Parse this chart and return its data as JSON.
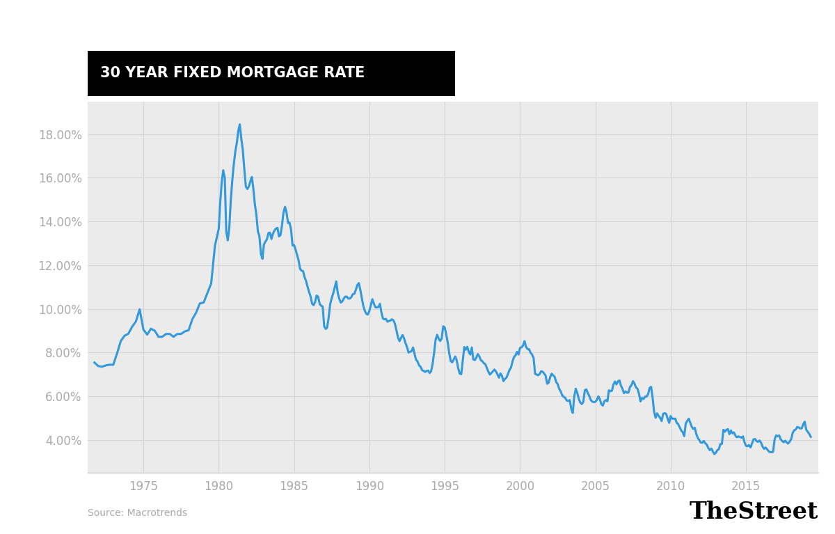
{
  "title": "30 YEAR FIXED MORTGAGE RATE",
  "title_bg": "#000000",
  "title_color": "#ffffff",
  "source_text": "Source: Macrotrends",
  "brand_text": "TheStreet",
  "line_color": "#3399dd",
  "fig_bg": "#ffffff",
  "plot_bg": "#ebebeb",
  "tick_color": "#aaaaaa",
  "grid_color": "#d5d5d5",
  "ylim": [
    2.5,
    19.5
  ],
  "xlim": [
    1971.3,
    2019.8
  ],
  "yticks": [
    4.0,
    6.0,
    8.0,
    10.0,
    12.0,
    14.0,
    16.0,
    18.0
  ],
  "xtick_spacing": 5,
  "data": [
    [
      1971.75,
      7.54
    ],
    [
      1972.0,
      7.38
    ],
    [
      1972.25,
      7.35
    ],
    [
      1972.5,
      7.41
    ],
    [
      1972.75,
      7.44
    ],
    [
      1973.0,
      7.44
    ],
    [
      1973.25,
      7.96
    ],
    [
      1973.5,
      8.53
    ],
    [
      1973.75,
      8.77
    ],
    [
      1974.0,
      8.86
    ],
    [
      1974.25,
      9.18
    ],
    [
      1974.5,
      9.42
    ],
    [
      1974.75,
      9.98
    ],
    [
      1975.0,
      9.05
    ],
    [
      1975.25,
      8.82
    ],
    [
      1975.5,
      9.09
    ],
    [
      1975.75,
      9.0
    ],
    [
      1976.0,
      8.72
    ],
    [
      1976.25,
      8.72
    ],
    [
      1976.5,
      8.85
    ],
    [
      1976.75,
      8.85
    ],
    [
      1977.0,
      8.72
    ],
    [
      1977.25,
      8.85
    ],
    [
      1977.5,
      8.85
    ],
    [
      1977.75,
      8.97
    ],
    [
      1978.0,
      9.02
    ],
    [
      1978.25,
      9.53
    ],
    [
      1978.5,
      9.83
    ],
    [
      1978.75,
      10.25
    ],
    [
      1979.0,
      10.29
    ],
    [
      1979.25,
      10.73
    ],
    [
      1979.5,
      11.17
    ],
    [
      1979.75,
      12.9
    ],
    [
      1980.0,
      13.67
    ],
    [
      1980.1,
      14.88
    ],
    [
      1980.2,
      15.82
    ],
    [
      1980.3,
      16.35
    ],
    [
      1980.4,
      16.0
    ],
    [
      1980.5,
      13.55
    ],
    [
      1980.6,
      13.14
    ],
    [
      1980.7,
      13.7
    ],
    [
      1980.8,
      14.97
    ],
    [
      1980.9,
      15.89
    ],
    [
      1981.0,
      16.63
    ],
    [
      1981.1,
      17.2
    ],
    [
      1981.2,
      17.6
    ],
    [
      1981.3,
      18.16
    ],
    [
      1981.4,
      18.45
    ],
    [
      1981.5,
      17.78
    ],
    [
      1981.6,
      17.27
    ],
    [
      1981.7,
      16.38
    ],
    [
      1981.8,
      15.6
    ],
    [
      1981.9,
      15.49
    ],
    [
      1982.0,
      15.6
    ],
    [
      1982.1,
      15.85
    ],
    [
      1982.2,
      16.04
    ],
    [
      1982.3,
      15.49
    ],
    [
      1982.4,
      14.78
    ],
    [
      1982.5,
      14.31
    ],
    [
      1982.6,
      13.54
    ],
    [
      1982.7,
      13.33
    ],
    [
      1982.8,
      12.53
    ],
    [
      1982.9,
      12.29
    ],
    [
      1983.0,
      12.95
    ],
    [
      1983.1,
      13.08
    ],
    [
      1983.2,
      13.19
    ],
    [
      1983.3,
      13.47
    ],
    [
      1983.4,
      13.49
    ],
    [
      1983.5,
      13.2
    ],
    [
      1983.6,
      13.45
    ],
    [
      1983.7,
      13.59
    ],
    [
      1983.8,
      13.68
    ],
    [
      1983.9,
      13.71
    ],
    [
      1984.0,
      13.32
    ],
    [
      1984.1,
      13.38
    ],
    [
      1984.2,
      13.83
    ],
    [
      1984.3,
      14.42
    ],
    [
      1984.4,
      14.67
    ],
    [
      1984.5,
      14.42
    ],
    [
      1984.6,
      13.93
    ],
    [
      1984.7,
      13.95
    ],
    [
      1984.8,
      13.63
    ],
    [
      1984.9,
      12.9
    ],
    [
      1985.0,
      12.92
    ],
    [
      1985.1,
      12.72
    ],
    [
      1985.2,
      12.47
    ],
    [
      1985.3,
      12.22
    ],
    [
      1985.4,
      11.83
    ],
    [
      1985.5,
      11.75
    ],
    [
      1985.6,
      11.73
    ],
    [
      1985.7,
      11.45
    ],
    [
      1985.8,
      11.27
    ],
    [
      1985.9,
      11.01
    ],
    [
      1986.0,
      10.77
    ],
    [
      1986.1,
      10.56
    ],
    [
      1986.2,
      10.23
    ],
    [
      1986.3,
      10.17
    ],
    [
      1986.4,
      10.32
    ],
    [
      1986.5,
      10.61
    ],
    [
      1986.6,
      10.55
    ],
    [
      1986.7,
      10.23
    ],
    [
      1986.8,
      10.14
    ],
    [
      1986.9,
      10.11
    ],
    [
      1987.0,
      9.2
    ],
    [
      1987.1,
      9.08
    ],
    [
      1987.2,
      9.15
    ],
    [
      1987.3,
      9.64
    ],
    [
      1987.4,
      10.22
    ],
    [
      1987.5,
      10.49
    ],
    [
      1987.6,
      10.71
    ],
    [
      1987.7,
      10.99
    ],
    [
      1987.8,
      11.26
    ],
    [
      1987.9,
      10.73
    ],
    [
      1988.0,
      10.47
    ],
    [
      1988.1,
      10.29
    ],
    [
      1988.2,
      10.34
    ],
    [
      1988.3,
      10.47
    ],
    [
      1988.4,
      10.56
    ],
    [
      1988.5,
      10.56
    ],
    [
      1988.6,
      10.47
    ],
    [
      1988.7,
      10.47
    ],
    [
      1988.8,
      10.54
    ],
    [
      1988.9,
      10.67
    ],
    [
      1989.0,
      10.69
    ],
    [
      1989.1,
      10.87
    ],
    [
      1989.2,
      11.09
    ],
    [
      1989.3,
      11.18
    ],
    [
      1989.4,
      10.87
    ],
    [
      1989.5,
      10.49
    ],
    [
      1989.6,
      10.13
    ],
    [
      1989.7,
      9.91
    ],
    [
      1989.8,
      9.77
    ],
    [
      1989.9,
      9.74
    ],
    [
      1990.0,
      9.91
    ],
    [
      1990.1,
      10.17
    ],
    [
      1990.2,
      10.44
    ],
    [
      1990.3,
      10.24
    ],
    [
      1990.4,
      10.07
    ],
    [
      1990.5,
      10.07
    ],
    [
      1990.6,
      10.08
    ],
    [
      1990.7,
      10.23
    ],
    [
      1990.8,
      9.84
    ],
    [
      1990.9,
      9.56
    ],
    [
      1991.0,
      9.52
    ],
    [
      1991.1,
      9.54
    ],
    [
      1991.2,
      9.41
    ],
    [
      1991.3,
      9.44
    ],
    [
      1991.4,
      9.47
    ],
    [
      1991.5,
      9.52
    ],
    [
      1991.6,
      9.47
    ],
    [
      1991.7,
      9.31
    ],
    [
      1991.8,
      9.01
    ],
    [
      1991.9,
      8.69
    ],
    [
      1992.0,
      8.52
    ],
    [
      1992.1,
      8.67
    ],
    [
      1992.2,
      8.8
    ],
    [
      1992.3,
      8.65
    ],
    [
      1992.4,
      8.43
    ],
    [
      1992.5,
      8.25
    ],
    [
      1992.6,
      8.0
    ],
    [
      1992.7,
      8.03
    ],
    [
      1992.8,
      8.07
    ],
    [
      1992.9,
      8.23
    ],
    [
      1993.0,
      7.93
    ],
    [
      1993.1,
      7.67
    ],
    [
      1993.2,
      7.59
    ],
    [
      1993.3,
      7.41
    ],
    [
      1993.4,
      7.35
    ],
    [
      1993.5,
      7.19
    ],
    [
      1993.6,
      7.16
    ],
    [
      1993.7,
      7.11
    ],
    [
      1993.8,
      7.16
    ],
    [
      1993.9,
      7.17
    ],
    [
      1994.0,
      7.06
    ],
    [
      1994.1,
      7.15
    ],
    [
      1994.2,
      7.49
    ],
    [
      1994.3,
      8.01
    ],
    [
      1994.4,
      8.6
    ],
    [
      1994.5,
      8.81
    ],
    [
      1994.6,
      8.63
    ],
    [
      1994.7,
      8.53
    ],
    [
      1994.8,
      8.64
    ],
    [
      1994.9,
      9.2
    ],
    [
      1995.0,
      9.15
    ],
    [
      1995.1,
      8.84
    ],
    [
      1995.2,
      8.46
    ],
    [
      1995.3,
      7.97
    ],
    [
      1995.4,
      7.61
    ],
    [
      1995.5,
      7.55
    ],
    [
      1995.6,
      7.68
    ],
    [
      1995.7,
      7.82
    ],
    [
      1995.8,
      7.64
    ],
    [
      1995.9,
      7.26
    ],
    [
      1996.0,
      7.03
    ],
    [
      1996.1,
      7.01
    ],
    [
      1996.2,
      7.63
    ],
    [
      1996.3,
      8.25
    ],
    [
      1996.4,
      8.13
    ],
    [
      1996.5,
      8.26
    ],
    [
      1996.6,
      8.02
    ],
    [
      1996.7,
      7.91
    ],
    [
      1996.8,
      8.23
    ],
    [
      1996.9,
      7.68
    ],
    [
      1997.0,
      7.65
    ],
    [
      1997.1,
      7.77
    ],
    [
      1997.2,
      7.93
    ],
    [
      1997.3,
      7.82
    ],
    [
      1997.4,
      7.65
    ],
    [
      1997.5,
      7.6
    ],
    [
      1997.6,
      7.51
    ],
    [
      1997.7,
      7.46
    ],
    [
      1997.8,
      7.29
    ],
    [
      1997.9,
      7.12
    ],
    [
      1998.0,
      6.99
    ],
    [
      1998.1,
      7.06
    ],
    [
      1998.2,
      7.14
    ],
    [
      1998.3,
      7.22
    ],
    [
      1998.4,
      7.14
    ],
    [
      1998.5,
      7.0
    ],
    [
      1998.6,
      6.85
    ],
    [
      1998.7,
      7.04
    ],
    [
      1998.8,
      6.93
    ],
    [
      1998.9,
      6.69
    ],
    [
      1999.0,
      6.79
    ],
    [
      1999.1,
      6.85
    ],
    [
      1999.2,
      7.02
    ],
    [
      1999.3,
      7.2
    ],
    [
      1999.4,
      7.31
    ],
    [
      1999.5,
      7.59
    ],
    [
      1999.6,
      7.79
    ],
    [
      1999.7,
      7.87
    ],
    [
      1999.8,
      8.03
    ],
    [
      1999.9,
      7.91
    ],
    [
      2000.0,
      8.21
    ],
    [
      2000.1,
      8.24
    ],
    [
      2000.2,
      8.32
    ],
    [
      2000.3,
      8.52
    ],
    [
      2000.4,
      8.26
    ],
    [
      2000.5,
      8.16
    ],
    [
      2000.6,
      8.15
    ],
    [
      2000.7,
      7.99
    ],
    [
      2000.8,
      7.91
    ],
    [
      2000.9,
      7.75
    ],
    [
      2001.0,
      7.03
    ],
    [
      2001.1,
      6.99
    ],
    [
      2001.2,
      6.96
    ],
    [
      2001.3,
      7.01
    ],
    [
      2001.4,
      7.14
    ],
    [
      2001.5,
      7.12
    ],
    [
      2001.6,
      7.04
    ],
    [
      2001.7,
      6.94
    ],
    [
      2001.8,
      6.57
    ],
    [
      2001.9,
      6.62
    ],
    [
      2002.0,
      6.87
    ],
    [
      2002.1,
      7.03
    ],
    [
      2002.2,
      6.96
    ],
    [
      2002.3,
      6.88
    ],
    [
      2002.4,
      6.65
    ],
    [
      2002.5,
      6.55
    ],
    [
      2002.6,
      6.34
    ],
    [
      2002.7,
      6.22
    ],
    [
      2002.8,
      6.04
    ],
    [
      2002.9,
      5.97
    ],
    [
      2003.0,
      5.92
    ],
    [
      2003.1,
      5.8
    ],
    [
      2003.2,
      5.78
    ],
    [
      2003.3,
      5.82
    ],
    [
      2003.4,
      5.42
    ],
    [
      2003.5,
      5.23
    ],
    [
      2003.6,
      5.99
    ],
    [
      2003.7,
      6.34
    ],
    [
      2003.8,
      6.15
    ],
    [
      2003.9,
      5.88
    ],
    [
      2004.0,
      5.71
    ],
    [
      2004.1,
      5.64
    ],
    [
      2004.2,
      5.73
    ],
    [
      2004.3,
      6.27
    ],
    [
      2004.4,
      6.31
    ],
    [
      2004.5,
      6.14
    ],
    [
      2004.6,
      6.01
    ],
    [
      2004.7,
      5.82
    ],
    [
      2004.8,
      5.75
    ],
    [
      2004.9,
      5.73
    ],
    [
      2005.0,
      5.74
    ],
    [
      2005.1,
      5.83
    ],
    [
      2005.2,
      5.99
    ],
    [
      2005.3,
      5.86
    ],
    [
      2005.4,
      5.63
    ],
    [
      2005.5,
      5.57
    ],
    [
      2005.6,
      5.77
    ],
    [
      2005.7,
      5.82
    ],
    [
      2005.8,
      5.77
    ],
    [
      2005.9,
      6.27
    ],
    [
      2006.0,
      6.23
    ],
    [
      2006.1,
      6.25
    ],
    [
      2006.2,
      6.53
    ],
    [
      2006.3,
      6.67
    ],
    [
      2006.4,
      6.54
    ],
    [
      2006.5,
      6.68
    ],
    [
      2006.6,
      6.72
    ],
    [
      2006.7,
      6.48
    ],
    [
      2006.8,
      6.34
    ],
    [
      2006.9,
      6.14
    ],
    [
      2007.0,
      6.22
    ],
    [
      2007.1,
      6.16
    ],
    [
      2007.2,
      6.17
    ],
    [
      2007.3,
      6.42
    ],
    [
      2007.4,
      6.51
    ],
    [
      2007.5,
      6.69
    ],
    [
      2007.6,
      6.57
    ],
    [
      2007.7,
      6.4
    ],
    [
      2007.8,
      6.34
    ],
    [
      2007.9,
      6.1
    ],
    [
      2008.0,
      5.76
    ],
    [
      2008.1,
      5.92
    ],
    [
      2008.2,
      5.87
    ],
    [
      2008.3,
      5.98
    ],
    [
      2008.4,
      5.98
    ],
    [
      2008.5,
      6.09
    ],
    [
      2008.6,
      6.37
    ],
    [
      2008.7,
      6.43
    ],
    [
      2008.8,
      5.94
    ],
    [
      2008.9,
      5.29
    ],
    [
      2009.0,
      5.01
    ],
    [
      2009.1,
      5.21
    ],
    [
      2009.2,
      5.1
    ],
    [
      2009.3,
      5.01
    ],
    [
      2009.4,
      4.86
    ],
    [
      2009.5,
      5.19
    ],
    [
      2009.6,
      5.22
    ],
    [
      2009.7,
      5.19
    ],
    [
      2009.8,
      4.97
    ],
    [
      2009.9,
      4.78
    ],
    [
      2010.0,
      5.09
    ],
    [
      2010.1,
      4.97
    ],
    [
      2010.2,
      4.97
    ],
    [
      2010.3,
      4.97
    ],
    [
      2010.4,
      4.78
    ],
    [
      2010.5,
      4.72
    ],
    [
      2010.6,
      4.57
    ],
    [
      2010.7,
      4.43
    ],
    [
      2010.8,
      4.35
    ],
    [
      2010.9,
      4.17
    ],
    [
      2011.0,
      4.74
    ],
    [
      2011.1,
      4.87
    ],
    [
      2011.2,
      4.97
    ],
    [
      2011.3,
      4.78
    ],
    [
      2011.4,
      4.6
    ],
    [
      2011.5,
      4.5
    ],
    [
      2011.6,
      4.55
    ],
    [
      2011.7,
      4.27
    ],
    [
      2011.8,
      4.09
    ],
    [
      2011.9,
      3.99
    ],
    [
      2012.0,
      3.87
    ],
    [
      2012.1,
      3.87
    ],
    [
      2012.2,
      3.95
    ],
    [
      2012.3,
      3.84
    ],
    [
      2012.4,
      3.78
    ],
    [
      2012.5,
      3.62
    ],
    [
      2012.6,
      3.53
    ],
    [
      2012.7,
      3.6
    ],
    [
      2012.8,
      3.47
    ],
    [
      2012.9,
      3.35
    ],
    [
      2013.0,
      3.41
    ],
    [
      2013.1,
      3.53
    ],
    [
      2013.2,
      3.57
    ],
    [
      2013.3,
      3.81
    ],
    [
      2013.4,
      3.81
    ],
    [
      2013.5,
      4.46
    ],
    [
      2013.6,
      4.37
    ],
    [
      2013.7,
      4.46
    ],
    [
      2013.8,
      4.49
    ],
    [
      2013.9,
      4.26
    ],
    [
      2014.0,
      4.43
    ],
    [
      2014.1,
      4.3
    ],
    [
      2014.2,
      4.34
    ],
    [
      2014.3,
      4.19
    ],
    [
      2014.4,
      4.12
    ],
    [
      2014.5,
      4.16
    ],
    [
      2014.6,
      4.13
    ],
    [
      2014.7,
      4.1
    ],
    [
      2014.8,
      4.16
    ],
    [
      2014.9,
      3.89
    ],
    [
      2015.0,
      3.73
    ],
    [
      2015.1,
      3.71
    ],
    [
      2015.2,
      3.76
    ],
    [
      2015.3,
      3.65
    ],
    [
      2015.4,
      3.84
    ],
    [
      2015.5,
      4.02
    ],
    [
      2015.6,
      4.04
    ],
    [
      2015.7,
      3.94
    ],
    [
      2015.8,
      3.91
    ],
    [
      2015.9,
      3.97
    ],
    [
      2016.0,
      3.87
    ],
    [
      2016.1,
      3.69
    ],
    [
      2016.2,
      3.59
    ],
    [
      2016.3,
      3.65
    ],
    [
      2016.4,
      3.57
    ],
    [
      2016.5,
      3.48
    ],
    [
      2016.6,
      3.44
    ],
    [
      2016.7,
      3.43
    ],
    [
      2016.8,
      3.46
    ],
    [
      2016.9,
      4.02
    ],
    [
      2017.0,
      4.2
    ],
    [
      2017.1,
      4.17
    ],
    [
      2017.2,
      4.2
    ],
    [
      2017.3,
      4.03
    ],
    [
      2017.4,
      3.95
    ],
    [
      2017.5,
      3.89
    ],
    [
      2017.6,
      3.96
    ],
    [
      2017.7,
      3.88
    ],
    [
      2017.8,
      3.83
    ],
    [
      2017.9,
      3.92
    ],
    [
      2018.0,
      4.03
    ],
    [
      2018.1,
      4.32
    ],
    [
      2018.2,
      4.44
    ],
    [
      2018.3,
      4.47
    ],
    [
      2018.4,
      4.59
    ],
    [
      2018.5,
      4.57
    ],
    [
      2018.6,
      4.52
    ],
    [
      2018.7,
      4.53
    ],
    [
      2018.8,
      4.72
    ],
    [
      2018.9,
      4.83
    ],
    [
      2019.0,
      4.46
    ],
    [
      2019.1,
      4.37
    ],
    [
      2019.2,
      4.27
    ],
    [
      2019.3,
      4.14
    ]
  ]
}
